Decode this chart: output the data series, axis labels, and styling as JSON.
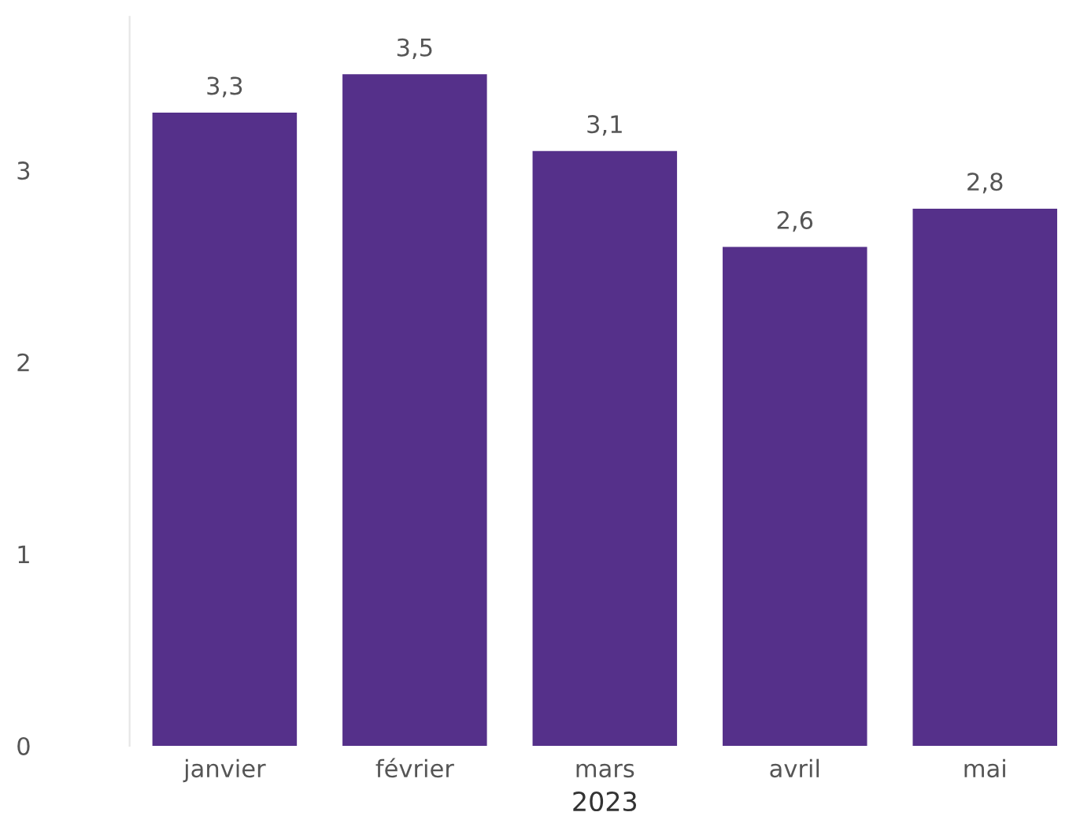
{
  "chart_data": {
    "type": "bar",
    "xlabel": "2023",
    "categories": [
      "janvier",
      "février",
      "mars",
      "avril",
      "mai"
    ],
    "values": [
      3.3,
      3.5,
      3.1,
      2.6,
      2.8
    ],
    "value_labels": [
      "3,3",
      "3,5",
      "3,1",
      "2,6",
      "2,8"
    ],
    "color": "#55308a",
    "ylim": [
      0,
      3.8
    ],
    "yticks": [
      0,
      1,
      2,
      3
    ],
    "grid": false,
    "legend": false
  }
}
